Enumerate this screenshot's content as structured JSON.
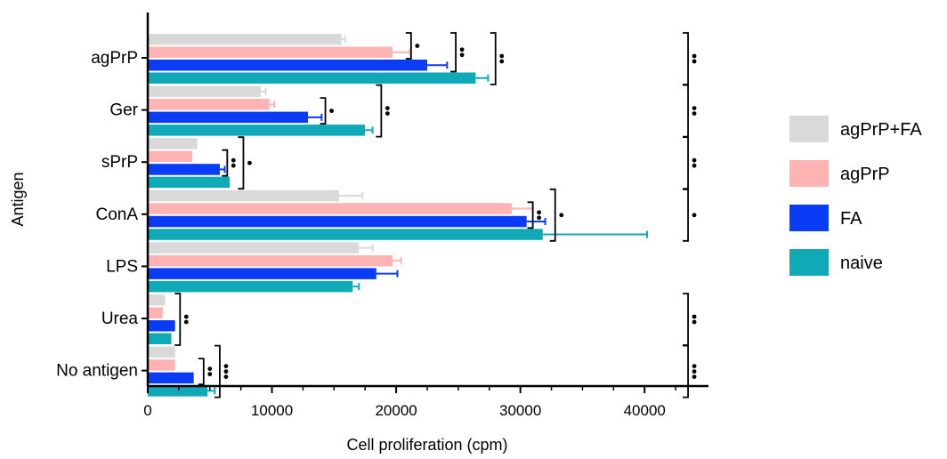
{
  "chart_data": {
    "type": "bar",
    "orientation": "horizontal",
    "title": "",
    "xlabel": "Cell proliferation (cpm)",
    "ylabel": "Antigen",
    "xlim": [
      0,
      45000
    ],
    "xticks": [
      0,
      10000,
      20000,
      30000,
      40000
    ],
    "xtick_labels": [
      "0",
      "10000",
      "20000",
      "30000",
      "40000"
    ],
    "categories": [
      "agPrP",
      "Ger",
      "sPrP",
      "ConA",
      "LPS",
      "Urea",
      "No antigen"
    ],
    "series": [
      {
        "name": "agPrP+FA",
        "color": "#d9d9d9",
        "values": [
          15600,
          9100,
          4000,
          15400,
          17000,
          1400,
          2200
        ],
        "errors": [
          300,
          400,
          0,
          1900,
          1100,
          0,
          0
        ]
      },
      {
        "name": "agPrP",
        "color": "#ffb3b3",
        "values": [
          19700,
          9800,
          3600,
          29300,
          19700,
          1200,
          2200
        ],
        "errors": [
          1400,
          400,
          0,
          1700,
          700,
          0,
          0
        ]
      },
      {
        "name": "FA",
        "color": "#0a3cf5",
        "values": [
          22500,
          12900,
          5800,
          30500,
          18400,
          2200,
          3700
        ],
        "errors": [
          1600,
          1100,
          400,
          1500,
          1700,
          0,
          0
        ]
      },
      {
        "name": "naive",
        "color": "#10a9b8",
        "values": [
          26400,
          17500,
          6600,
          31800,
          16500,
          1900,
          4800
        ],
        "errors": [
          1000,
          600,
          0,
          8400,
          500,
          0,
          600
        ]
      }
    ],
    "grid": false,
    "legend_position": "right",
    "significance": [
      {
        "category": 0,
        "span": [
          0,
          1
        ],
        "x": 21200,
        "dots": 1
      },
      {
        "category": 0,
        "span": [
          0,
          2
        ],
        "x": 24800,
        "dots": 2
      },
      {
        "category": 0,
        "span": [
          0,
          3
        ],
        "x": 28000,
        "dots": 2
      },
      {
        "category": 0,
        "span": [
          0,
          3
        ],
        "x": 43500,
        "dots": 2
      },
      {
        "category": 1,
        "span": [
          1,
          2
        ],
        "x": 14300,
        "dots": 1
      },
      {
        "category": 1,
        "span": [
          0,
          3
        ],
        "x": 18800,
        "dots": 2
      },
      {
        "category": 1,
        "span": [
          0,
          3
        ],
        "x": 43500,
        "dots": 2
      },
      {
        "category": 2,
        "span": [
          1,
          2
        ],
        "x": 6400,
        "dots": 2
      },
      {
        "category": 2,
        "span": [
          0,
          3
        ],
        "x": 7700,
        "dots": 1
      },
      {
        "category": 2,
        "span": [
          0,
          3
        ],
        "x": 43500,
        "dots": 2
      },
      {
        "category": 3,
        "span": [
          1,
          2
        ],
        "x": 31000,
        "dots": 2
      },
      {
        "category": 3,
        "span": [
          0,
          3
        ],
        "x": 32800,
        "dots": 1
      },
      {
        "category": 3,
        "span": [
          0,
          3
        ],
        "x": 43500,
        "dots": 1
      },
      {
        "category": 5,
        "span": [
          0,
          3
        ],
        "x": 2600,
        "dots": 2
      },
      {
        "category": 5,
        "span": [
          0,
          3
        ],
        "x": 43500,
        "dots": 2
      },
      {
        "category": 6,
        "span": [
          1,
          2
        ],
        "x": 4500,
        "dots": 2
      },
      {
        "category": 6,
        "span": [
          0,
          3
        ],
        "x": 5800,
        "dots": 3
      },
      {
        "category": 6,
        "span": [
          0,
          3
        ],
        "x": 43500,
        "dots": 3
      }
    ]
  }
}
